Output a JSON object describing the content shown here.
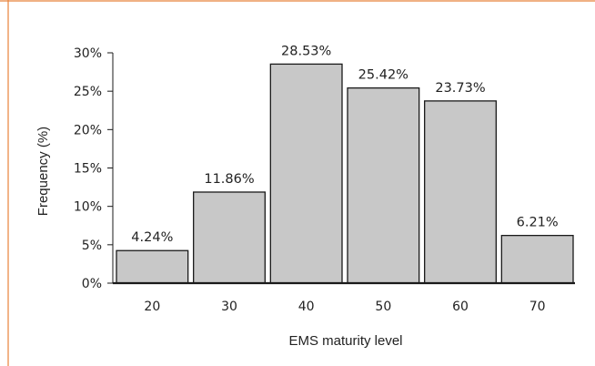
{
  "colors": {
    "frame": "#e8823a",
    "bar_fill": "#c8c8c8",
    "bar_stroke": "#1a1a1a",
    "axis": "#1a1a1a",
    "text": "#222222"
  },
  "chart_data": {
    "type": "bar",
    "title": "",
    "xlabel": "EMS maturity level",
    "ylabel": "Frequency (%)",
    "categories": [
      "20",
      "30",
      "40",
      "50",
      "60",
      "70"
    ],
    "values": [
      4.24,
      11.86,
      28.53,
      25.42,
      23.73,
      6.21
    ],
    "data_labels": [
      "4.24%",
      "11.86%",
      "28.53%",
      "25.42%",
      "23.73%",
      "6.21%"
    ],
    "ylim": [
      0,
      30
    ],
    "yticks": [
      0,
      5,
      10,
      15,
      20,
      25,
      30
    ],
    "ytick_labels": [
      "0%",
      "5%",
      "10%",
      "15%",
      "20%",
      "25%",
      "30%"
    ],
    "grid": false,
    "legend": "none"
  }
}
